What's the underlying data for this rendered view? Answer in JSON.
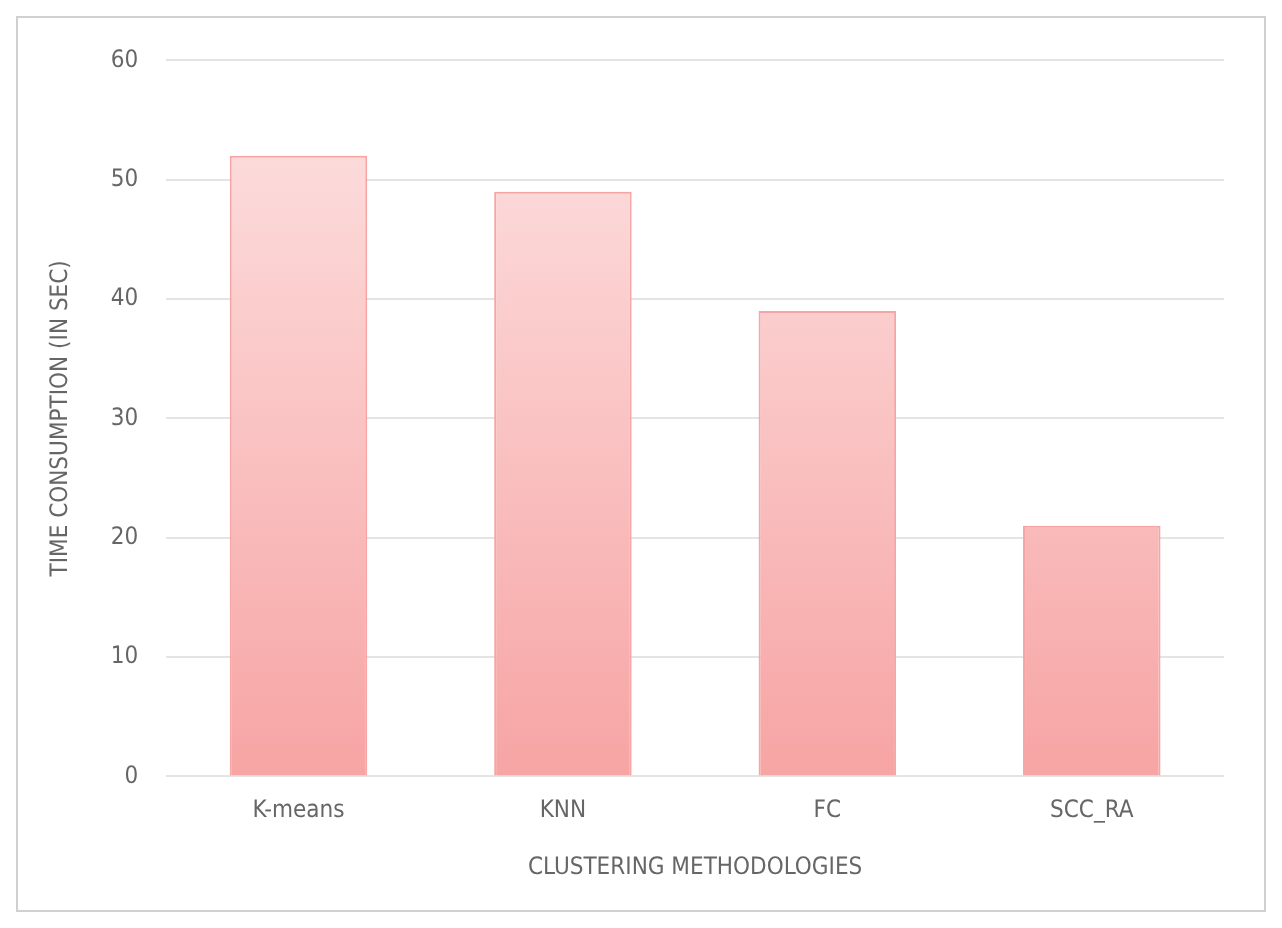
{
  "chart_data": {
    "type": "bar",
    "xlabel": "CLUSTERING METHODOLOGIES",
    "ylabel": "TIME CONSUMPTION (IN SEC)",
    "categories": [
      "K-means",
      "KNN",
      "FC",
      "SCC_RA"
    ],
    "values": [
      52,
      49,
      39,
      21
    ],
    "color": "#f7a4a4",
    "ylim": [
      0,
      60
    ],
    "yticks": [
      0,
      10,
      20,
      30,
      40,
      50,
      60
    ],
    "grid": "y"
  }
}
